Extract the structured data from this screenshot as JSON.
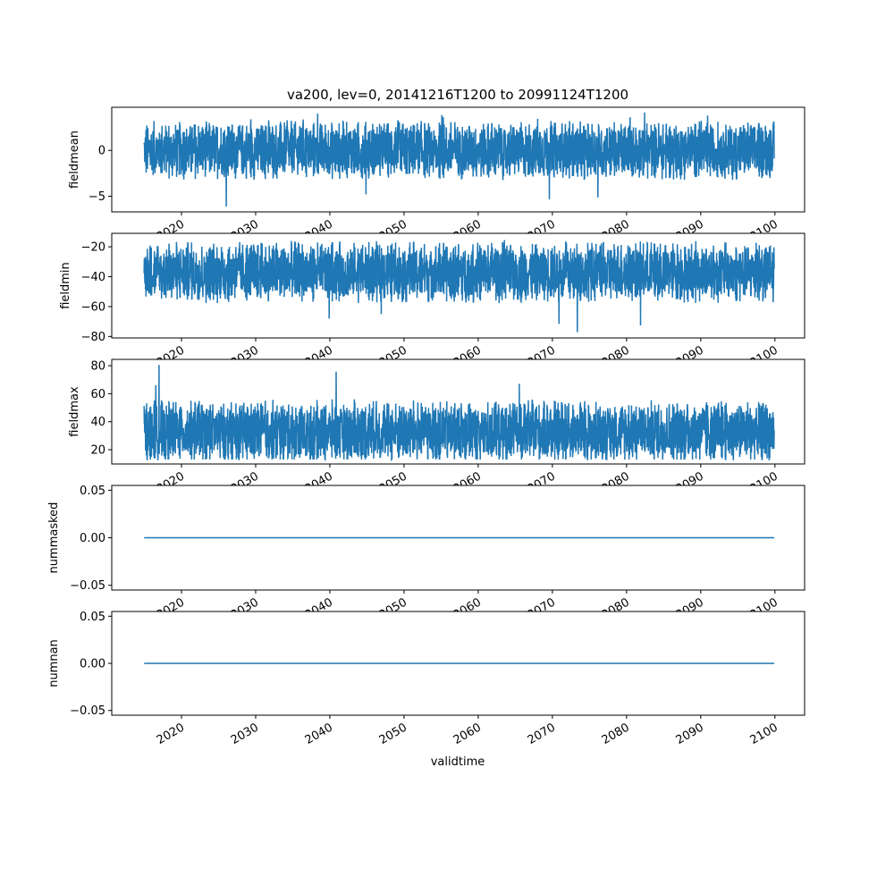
{
  "chart_data": {
    "type": "line",
    "title": "va200, lev=0, 20141216T1200 to 20991124T1200",
    "xlabel": "validtime",
    "xlim": [
      2010.6,
      2104.0
    ],
    "xticks": [
      2020,
      2030,
      2040,
      2050,
      2060,
      2070,
      2080,
      2090,
      2100
    ],
    "xtick_labels": [
      "2020",
      "2030",
      "2040",
      "2050",
      "2060",
      "2070",
      "2080",
      "2090",
      "2100"
    ],
    "x_start": 2014.96,
    "x_end": 2099.9,
    "line_color": "#1f77b4",
    "panels": [
      {
        "ylabel": "fieldmean",
        "ylim": [
          -6.7,
          4.7
        ],
        "yticks": [
          0,
          -5
        ],
        "ytick_labels": [
          "0",
          "−5"
        ],
        "series": {
          "kind": "noisy",
          "mean": 0,
          "typical_low": -3.5,
          "typical_high": 3.0,
          "min": -6.3,
          "max": 4.2
        }
      },
      {
        "ylabel": "fieldmin",
        "ylim": [
          -81,
          -11
        ],
        "yticks": [
          -20,
          -40,
          -60,
          -80
        ],
        "ytick_labels": [
          "−20",
          "−40",
          "−60",
          "−80"
        ],
        "series": {
          "kind": "noisy",
          "mean": -37,
          "typical_low": -60,
          "typical_high": -18,
          "min": -78,
          "max": -15
        }
      },
      {
        "ylabel": "fieldmax",
        "ylim": [
          9.8,
          84.5
        ],
        "yticks": [
          20,
          40,
          60,
          80
        ],
        "ytick_labels": [
          "20",
          "40",
          "60",
          "80"
        ],
        "series": {
          "kind": "noisy",
          "mean": 33,
          "typical_low": 16,
          "typical_high": 62,
          "min": 13,
          "max": 82
        }
      },
      {
        "ylabel": "nummasked",
        "ylim": [
          -0.055,
          0.055
        ],
        "yticks": [
          0.05,
          0.0,
          -0.05
        ],
        "ytick_labels": [
          "0.05",
          "0.00",
          "−0.05"
        ],
        "series": {
          "kind": "constant",
          "value": 0
        }
      },
      {
        "ylabel": "numnan",
        "ylim": [
          -0.055,
          0.055
        ],
        "yticks": [
          0.05,
          0.0,
          -0.05
        ],
        "ytick_labels": [
          "0.05",
          "0.00",
          "−0.05"
        ],
        "series": {
          "kind": "constant",
          "value": 0
        }
      }
    ]
  }
}
